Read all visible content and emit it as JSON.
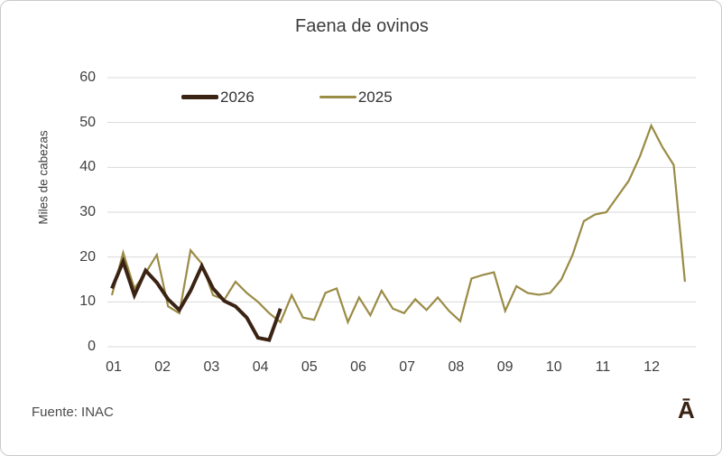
{
  "chart_data": {
    "type": "line",
    "title": "Faena de ovinos",
    "xlabel": "",
    "ylabel": "Miles de cabezas",
    "x_unit": "week (weekly data, 52 weeks per year)",
    "xtick_labels": [
      "01",
      "02",
      "03",
      "04",
      "05",
      "06",
      "07",
      "08",
      "09",
      "10",
      "11",
      "12"
    ],
    "yticks": [
      0,
      10,
      20,
      30,
      40,
      50,
      60
    ],
    "ylim": [
      0,
      60
    ],
    "grid": "horizontal",
    "gridline_color": "#d9d9d9",
    "legend_position": "top-inside",
    "series": [
      {
        "name": "2026",
        "color": "#3B2314",
        "line_width": 4,
        "values": [
          13,
          19,
          11.5,
          17,
          14.3,
          10.6,
          8.2,
          12.5,
          18,
          13,
          10.2,
          9,
          6.5,
          2,
          1.5,
          8.5
        ]
      },
      {
        "name": "2025",
        "color": "#9A8B45",
        "line_width": 2.2,
        "values": [
          11.5,
          21,
          13,
          16.5,
          20.5,
          9,
          7.5,
          21.5,
          18.5,
          11.5,
          10.5,
          14.5,
          12,
          10,
          7.5,
          5.5,
          11.5,
          6.5,
          6,
          12,
          13,
          5.5,
          11,
          7,
          12.5,
          8.5,
          7.5,
          10.6,
          8.2,
          11,
          8,
          5.7,
          15.2,
          16,
          16.6,
          8,
          13.5,
          12,
          11.6,
          12,
          15,
          20.5,
          28,
          29.5,
          30,
          33.5,
          37,
          42.5,
          49.3,
          44.5,
          40.5,
          14.5
        ]
      }
    ]
  },
  "footer": {
    "source": "Fuente: INAC",
    "watermark": "Ā"
  }
}
